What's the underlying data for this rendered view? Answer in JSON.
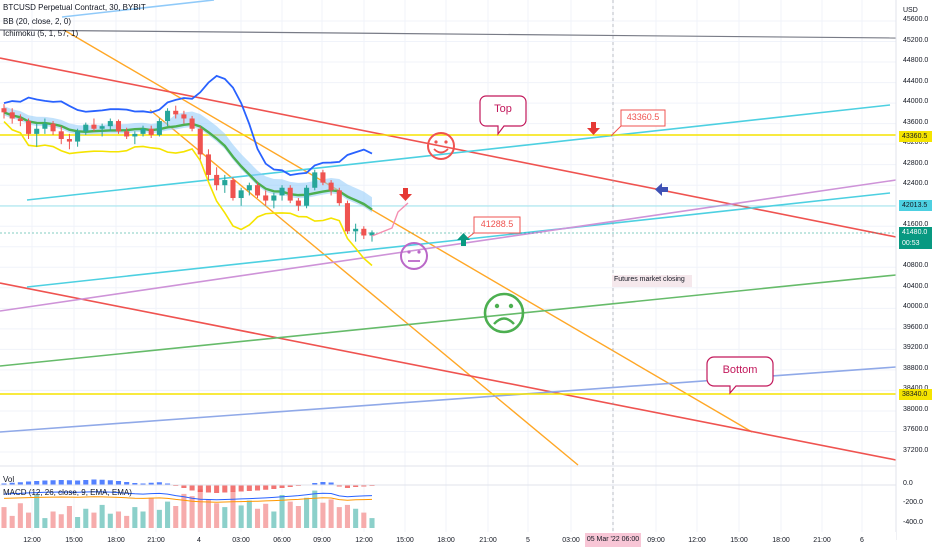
{
  "header": {
    "symbol_line": "BTCUSD Perpetual Contract, 30, BYBIT",
    "bb_line": "BB (20, close, 2, 0)",
    "ichimoku_line": "Ichimoku (5, 1, 57, 1)"
  },
  "sub_panel": {
    "vol_label": "Vol",
    "macd_line": "MACD (12, 26, close, 9, EMA, EMA)"
  },
  "price_axis": {
    "currency": "USD",
    "ticks": [
      "45600.0",
      "45200.0",
      "44800.0",
      "44400.0",
      "44000.0",
      "43600.0",
      "43200.0",
      "42800.0",
      "42400.0",
      "42000.0",
      "41600.0",
      "41200.0",
      "40800.0",
      "40400.0",
      "40000.0",
      "39600.0",
      "39200.0",
      "38800.0",
      "38400.0",
      "38000.0",
      "37600.0",
      "37200.0"
    ],
    "tags": [
      {
        "label": "43360.5",
        "value": 43360.5,
        "color": "#f5e400",
        "text_color": "#131722"
      },
      {
        "label": "42013.5",
        "value": 42013.5,
        "color": "#4dd0e1",
        "text_color": "#131722"
      },
      {
        "label": "41480.0",
        "sub": "00:53",
        "value": 41480.0,
        "color": "#089981",
        "text_color": "#ffffff"
      },
      {
        "label": "38340.0",
        "value": 38340.0,
        "color": "#f5e400",
        "text_color": "#131722"
      }
    ]
  },
  "macd_axis": {
    "ticks": [
      "0.0",
      "-200.0",
      "-400.0"
    ]
  },
  "time_axis": {
    "ticks": [
      "12:00",
      "15:00",
      "18:00",
      "21:00",
      "4",
      "03:00",
      "06:00",
      "09:00",
      "12:00",
      "15:00",
      "18:00",
      "21:00",
      "5",
      "03:00",
      "06:00",
      "09:00",
      "12:00",
      "15:00",
      "18:00",
      "21:00",
      "6"
    ],
    "crosshair_label": "05 Mar '22  06:00"
  },
  "annotations": {
    "top_bubble": "Top",
    "bottom_bubble": "Bottom",
    "price_label_high": "43360.5",
    "price_label_low": "41288.5",
    "note": "Futures market closing"
  },
  "chart_data": {
    "type": "candlestick",
    "ylim": [
      37000,
      45800
    ],
    "grid": true,
    "legend_placement": "top-left",
    "colors": {
      "up": "#26a69a",
      "down": "#ef5350",
      "bb_band": "#2962ff",
      "bb_basis": "#4caf50",
      "ichimoku_fill": "#90caf9",
      "lower_line": "#f5e400"
    },
    "candles": [
      [
        43900,
        43980,
        43700,
        43820
      ],
      [
        43820,
        43900,
        43600,
        43700
      ],
      [
        43700,
        43780,
        43550,
        43650
      ],
      [
        43650,
        43700,
        43300,
        43400
      ],
      [
        43400,
        43600,
        43150,
        43500
      ],
      [
        43500,
        43700,
        43400,
        43600
      ],
      [
        43600,
        43650,
        43380,
        43450
      ],
      [
        43450,
        43550,
        43200,
        43300
      ],
      [
        43300,
        43400,
        43100,
        43250
      ],
      [
        43250,
        43500,
        43150,
        43450
      ],
      [
        43450,
        43620,
        43380,
        43580
      ],
      [
        43580,
        43700,
        43450,
        43500
      ],
      [
        43500,
        43600,
        43350,
        43550
      ],
      [
        43550,
        43700,
        43450,
        43650
      ],
      [
        43650,
        43680,
        43400,
        43450
      ],
      [
        43450,
        43520,
        43300,
        43350
      ],
      [
        43350,
        43450,
        43200,
        43400
      ],
      [
        43400,
        43560,
        43350,
        43500
      ],
      [
        43500,
        43560,
        43320,
        43380
      ],
      [
        43380,
        43700,
        43350,
        43650
      ],
      [
        43650,
        43900,
        43550,
        43850
      ],
      [
        43850,
        43950,
        43700,
        43780
      ],
      [
        43780,
        43850,
        43600,
        43700
      ],
      [
        43700,
        43750,
        43450,
        43500
      ],
      [
        43500,
        43550,
        42900,
        43000
      ],
      [
        43000,
        43100,
        42500,
        42600
      ],
      [
        42600,
        42750,
        42300,
        42400
      ],
      [
        42400,
        42600,
        42250,
        42500
      ],
      [
        42500,
        42550,
        42100,
        42150
      ],
      [
        42150,
        42350,
        42000,
        42300
      ],
      [
        42300,
        42450,
        42200,
        42400
      ],
      [
        42400,
        42450,
        42150,
        42200
      ],
      [
        42200,
        42300,
        42000,
        42100
      ],
      [
        42100,
        42250,
        41950,
        42200
      ],
      [
        42200,
        42400,
        42100,
        42350
      ],
      [
        42350,
        42400,
        42050,
        42100
      ],
      [
        42100,
        42150,
        41900,
        42000
      ],
      [
        42000,
        42400,
        41950,
        42350
      ],
      [
        42350,
        42700,
        42300,
        42650
      ],
      [
        42650,
        42700,
        42400,
        42450
      ],
      [
        42450,
        42500,
        42200,
        42300
      ],
      [
        42300,
        42350,
        42000,
        42050
      ],
      [
        42050,
        42100,
        41450,
        41500
      ],
      [
        41500,
        41650,
        41300,
        41550
      ],
      [
        41550,
        41600,
        41350,
        41420
      ],
      [
        41420,
        41520,
        41300,
        41480
      ]
    ],
    "volume": [
      38,
      22,
      45,
      28,
      60,
      18,
      30,
      25,
      40,
      20,
      35,
      28,
      42,
      26,
      30,
      22,
      38,
      30,
      55,
      33,
      48,
      40,
      62,
      58,
      70,
      52,
      45,
      38,
      66,
      41,
      50,
      35,
      44,
      30,
      60,
      48,
      40,
      55,
      68,
      46,
      52,
      38,
      42,
      35,
      28,
      18
    ],
    "macd_histogram": [
      30,
      45,
      55,
      70,
      80,
      90,
      95,
      100,
      95,
      90,
      100,
      110,
      105,
      95,
      80,
      60,
      40,
      30,
      45,
      55,
      30,
      -20,
      -60,
      -110,
      -140,
      -150,
      -160,
      -150,
      -140,
      -130,
      -120,
      -110,
      -95,
      -80,
      -60,
      -40,
      -20,
      10,
      40,
      60,
      50,
      -30,
      -60,
      -40,
      -30,
      -20
    ]
  }
}
